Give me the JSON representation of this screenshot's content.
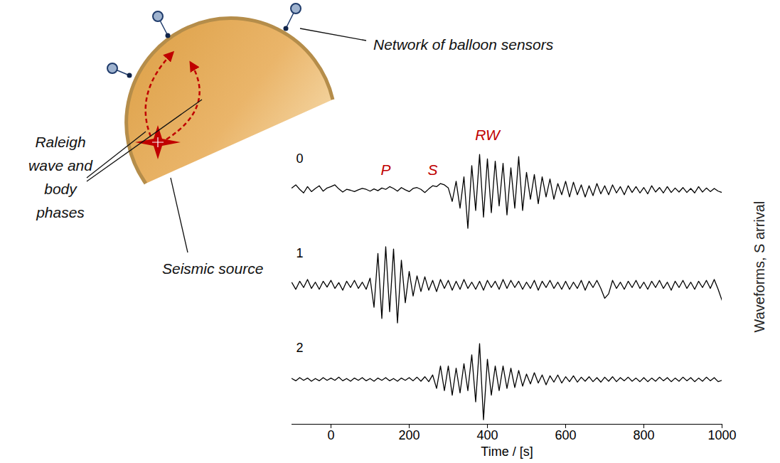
{
  "chart_data": {
    "type": "line",
    "x_label": "Time / [s]",
    "y_label": "Waveforms, S arrival",
    "xlim": [
      -100,
      1000
    ],
    "xticks": [
      0,
      200,
      400,
      600,
      800,
      1000
    ],
    "ylim": [
      -1,
      1
    ],
    "tick_labels": "x",
    "x": [
      -100,
      -90,
      -80,
      -70,
      -60,
      -50,
      -40,
      -30,
      -20,
      -10,
      0,
      10,
      20,
      30,
      40,
      50,
      60,
      70,
      80,
      90,
      100,
      110,
      120,
      130,
      140,
      150,
      160,
      170,
      180,
      190,
      200,
      210,
      220,
      230,
      240,
      250,
      260,
      270,
      280,
      290,
      300,
      310,
      320,
      330,
      340,
      350,
      360,
      370,
      380,
      390,
      400,
      410,
      420,
      430,
      440,
      450,
      460,
      470,
      480,
      490,
      500,
      510,
      520,
      530,
      540,
      550,
      560,
      570,
      580,
      590,
      600,
      610,
      620,
      630,
      640,
      650,
      660,
      670,
      680,
      690,
      700,
      710,
      720,
      730,
      740,
      750,
      760,
      770,
      780,
      790,
      800,
      810,
      820,
      830,
      840,
      850,
      860,
      870,
      880,
      890,
      900,
      910,
      920,
      930,
      940,
      950,
      960,
      970,
      980,
      990,
      1000
    ],
    "series": [
      {
        "name": "0",
        "color": "#000000",
        "values": [
          0.05,
          0.12,
          0.02,
          -0.06,
          0.08,
          -0.03,
          0.04,
          0.1,
          -0.02,
          0.05,
          0.08,
          0.12,
          0.03,
          -0.04,
          0.02,
          0.0,
          -0.03,
          0.01,
          0.04,
          0.02,
          -0.02,
          0.03,
          -0.01,
          0.05,
          0.02,
          0.08,
          0.04,
          -0.02,
          0.06,
          0.01,
          -0.03,
          0.04,
          0.06,
          0.02,
          -0.05,
          0.03,
          0.1,
          0.08,
          0.15,
          0.12,
          0.05,
          -0.25,
          0.2,
          -0.4,
          0.3,
          -0.85,
          0.55,
          -0.45,
          0.8,
          -0.6,
          0.7,
          -0.5,
          0.65,
          -0.35,
          0.6,
          -0.55,
          0.5,
          -0.4,
          0.75,
          -0.45,
          0.4,
          -0.2,
          0.35,
          -0.3,
          0.3,
          -0.15,
          0.25,
          -0.2,
          0.15,
          -0.1,
          0.2,
          -0.15,
          0.18,
          -0.1,
          0.12,
          -0.15,
          0.1,
          -0.12,
          0.15,
          -0.08,
          0.1,
          -0.1,
          0.12,
          -0.06,
          0.08,
          -0.1,
          0.1,
          -0.05,
          0.08,
          -0.06,
          0.06,
          -0.08,
          0.1,
          -0.04,
          0.06,
          -0.06,
          0.08,
          -0.05,
          0.05,
          -0.04,
          0.06,
          -0.05,
          0.04,
          -0.06,
          0.08,
          -0.04,
          0.05,
          -0.03,
          0.04,
          -0.02,
          -0.05
        ]
      },
      {
        "name": "1",
        "color": "#000000",
        "values": [
          0.05,
          -0.1,
          0.08,
          -0.06,
          0.12,
          -0.08,
          0.06,
          -0.1,
          0.08,
          -0.05,
          0.1,
          -0.08,
          0.05,
          -0.12,
          0.08,
          -0.06,
          0.1,
          -0.08,
          0.06,
          -0.1,
          0.15,
          -0.5,
          0.7,
          -0.75,
          0.85,
          -0.6,
          0.8,
          -0.85,
          0.55,
          -0.4,
          0.3,
          -0.25,
          0.2,
          -0.15,
          0.18,
          -0.12,
          0.1,
          -0.15,
          0.12,
          -0.08,
          0.1,
          -0.12,
          0.08,
          -0.1,
          0.12,
          -0.08,
          0.06,
          -0.1,
          0.08,
          -0.12,
          0.1,
          -0.06,
          0.08,
          -0.1,
          0.12,
          -0.08,
          0.1,
          -0.06,
          0.08,
          -0.1,
          0.06,
          -0.08,
          0.1,
          -0.12,
          0.08,
          -0.06,
          0.1,
          -0.08,
          0.06,
          -0.1,
          0.08,
          -0.1,
          0.06,
          -0.08,
          0.1,
          -0.12,
          0.08,
          -0.06,
          0.1,
          -0.08,
          -0.3,
          -0.2,
          0.1,
          -0.08,
          0.06,
          -0.1,
          0.08,
          -0.06,
          0.1,
          -0.08,
          0.06,
          -0.1,
          0.08,
          -0.06,
          0.1,
          -0.08,
          0.06,
          -0.12,
          0.08,
          -0.06,
          0.1,
          -0.08,
          0.06,
          -0.1,
          0.08,
          -0.06,
          0.1,
          -0.08,
          0.12,
          -0.1,
          -0.35
        ]
      },
      {
        "name": "2",
        "color": "#000000",
        "values": [
          0.02,
          -0.03,
          0.04,
          -0.02,
          0.03,
          -0.04,
          0.02,
          -0.03,
          0.04,
          -0.02,
          0.03,
          -0.02,
          0.05,
          -0.03,
          0.02,
          -0.04,
          0.03,
          -0.02,
          0.04,
          -0.03,
          0.02,
          -0.04,
          0.03,
          -0.02,
          0.04,
          -0.03,
          0.02,
          -0.04,
          0.03,
          -0.02,
          0.04,
          -0.03,
          0.05,
          -0.04,
          0.06,
          -0.05,
          0.1,
          -0.2,
          0.3,
          -0.25,
          0.3,
          -0.35,
          0.25,
          -0.3,
          0.35,
          -0.25,
          0.55,
          -0.5,
          0.8,
          -0.9,
          0.45,
          -0.35,
          0.3,
          -0.25,
          0.3,
          -0.2,
          0.25,
          -0.18,
          0.2,
          -0.15,
          0.12,
          -0.1,
          0.15,
          -0.08,
          0.1,
          -0.12,
          0.08,
          -0.06,
          0.1,
          -0.08,
          0.06,
          -0.05,
          0.08,
          -0.06,
          0.05,
          -0.04,
          0.06,
          -0.05,
          0.04,
          -0.06,
          0.05,
          -0.04,
          0.06,
          -0.05,
          0.04,
          -0.03,
          0.05,
          -0.04,
          0.03,
          -0.05,
          0.04,
          -0.05,
          0.03,
          -0.04,
          0.05,
          -0.03,
          0.04,
          -0.05,
          0.03,
          -0.04,
          0.05,
          -0.03,
          0.04,
          -0.05,
          0.03,
          -0.04,
          0.05,
          -0.03,
          0.04,
          -0.05,
          -0.02
        ]
      }
    ],
    "annotations": [
      {
        "text": "P",
        "x": 140,
        "color": "#c00000"
      },
      {
        "text": "S",
        "x": 260,
        "color": "#c00000"
      },
      {
        "text": "RW",
        "x": 400,
        "color": "#c00000"
      }
    ]
  },
  "diagram": {
    "labels": {
      "sensors": "Network of balloon sensors",
      "waves": "Raleigh wave and body phases",
      "source": "Seismic source"
    }
  }
}
